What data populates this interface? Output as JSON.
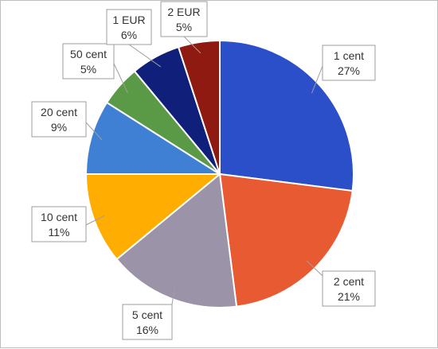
{
  "chart_data": {
    "type": "pie",
    "categories": [
      "1 cent",
      "2 cent",
      "5 cent",
      "10 cent",
      "20 cent",
      "50 cent",
      "1 EUR",
      "2 EUR"
    ],
    "values": [
      27,
      21,
      16,
      11,
      9,
      5,
      6,
      5
    ],
    "value_labels": [
      "27%",
      "21%",
      "16%",
      "11%",
      "9%",
      "5%",
      "6%",
      "5%"
    ],
    "colors": [
      "#2a4fc9",
      "#e85a32",
      "#9b93a8",
      "#ffad00",
      "#3f7fd4",
      "#5a9a46",
      "#0f1f7a",
      "#8e1a12"
    ],
    "start": "12 o'clock",
    "direction": "clockwise",
    "legend": "none",
    "labels": "callout boxes"
  }
}
